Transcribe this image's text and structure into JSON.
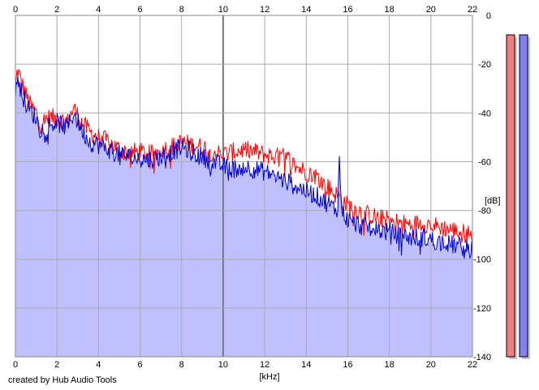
{
  "footer": {
    "credit": "created by Hub Audio Tools"
  },
  "chart_data": {
    "type": "area",
    "xlabel": "[kHz]",
    "ylabel": "[dB]",
    "xlim": [
      0,
      22
    ],
    "ylim": [
      -140,
      0
    ],
    "x_ticks": [
      0,
      2,
      4,
      6,
      8,
      10,
      12,
      14,
      16,
      18,
      20,
      22
    ],
    "y_ticks": [
      0,
      -20,
      -40,
      -60,
      -80,
      -100,
      -120,
      -140
    ],
    "grid": true,
    "colors": {
      "fill": "#c0c0ff",
      "red": "#ff0000",
      "blue": "#0000cc",
      "grid_minor": "#aaaaaa",
      "grid_major": "#777777",
      "meter_left": "#f08080",
      "meter_right": "#8080f0"
    },
    "series": [
      {
        "color": "#ff0000",
        "x": [
          0,
          0.1,
          0.2,
          0.4,
          0.6,
          0.8,
          1.0,
          1.2,
          1.5,
          2.0,
          2.5,
          2.8,
          3.2,
          3.6,
          4.0,
          4.5,
          5.0,
          5.5,
          6.0,
          6.5,
          7.0,
          7.5,
          8.0,
          8.5,
          9.0,
          9.5,
          10.0,
          10.5,
          11.0,
          11.5,
          12.0,
          12.5,
          13.0,
          13.5,
          14.0,
          14.5,
          15.0,
          15.5,
          16.0,
          16.5,
          17.0,
          17.5,
          18.0,
          18.5,
          19.0,
          19.5,
          20.0,
          20.5,
          21.0,
          21.5,
          22.0
        ],
        "values": [
          -30,
          -22,
          -25,
          -30,
          -35,
          -38,
          -40,
          -45,
          -42,
          -42,
          -44,
          -38,
          -44,
          -48,
          -50,
          -52,
          -55,
          -56,
          -56,
          -57,
          -55,
          -54,
          -52,
          -53,
          -54,
          -56,
          -57,
          -56,
          -55,
          -56,
          -57,
          -58,
          -58,
          -62,
          -64,
          -66,
          -70,
          -74,
          -78,
          -80,
          -82,
          -83,
          -84,
          -85,
          -86,
          -85,
          -86,
          -87,
          -88,
          -89,
          -90
        ]
      },
      {
        "color": "#0000cc",
        "x": [
          0,
          0.1,
          0.2,
          0.4,
          0.6,
          0.8,
          1.0,
          1.2,
          1.5,
          2.0,
          2.5,
          2.8,
          3.2,
          3.6,
          4.0,
          4.5,
          5.0,
          5.5,
          6.0,
          6.5,
          7.0,
          7.5,
          8.0,
          8.5,
          9.0,
          9.5,
          10.0,
          10.5,
          11.0,
          11.5,
          12.0,
          12.5,
          13.0,
          13.5,
          14.0,
          14.5,
          15.0,
          15.5,
          15.6,
          15.7,
          16.0,
          16.5,
          17.0,
          17.5,
          18.0,
          18.5,
          19.0,
          19.5,
          20.0,
          20.5,
          21.0,
          21.5,
          22.0
        ],
        "values": [
          -35,
          -24,
          -28,
          -34,
          -38,
          -40,
          -42,
          -47,
          -45,
          -44,
          -46,
          -40,
          -47,
          -52,
          -53,
          -55,
          -57,
          -58,
          -59,
          -59,
          -58,
          -56,
          -54,
          -56,
          -58,
          -60,
          -62,
          -63,
          -62,
          -63,
          -64,
          -66,
          -68,
          -70,
          -72,
          -74,
          -77,
          -80,
          -59,
          -80,
          -84,
          -86,
          -87,
          -88,
          -89,
          -90,
          -91,
          -91,
          -92,
          -93,
          -94,
          -95,
          -96
        ]
      }
    ],
    "level_meters": [
      {
        "color": "#f08080",
        "value_db": -8
      },
      {
        "color": "#8080f0",
        "value_db": -8
      }
    ]
  }
}
